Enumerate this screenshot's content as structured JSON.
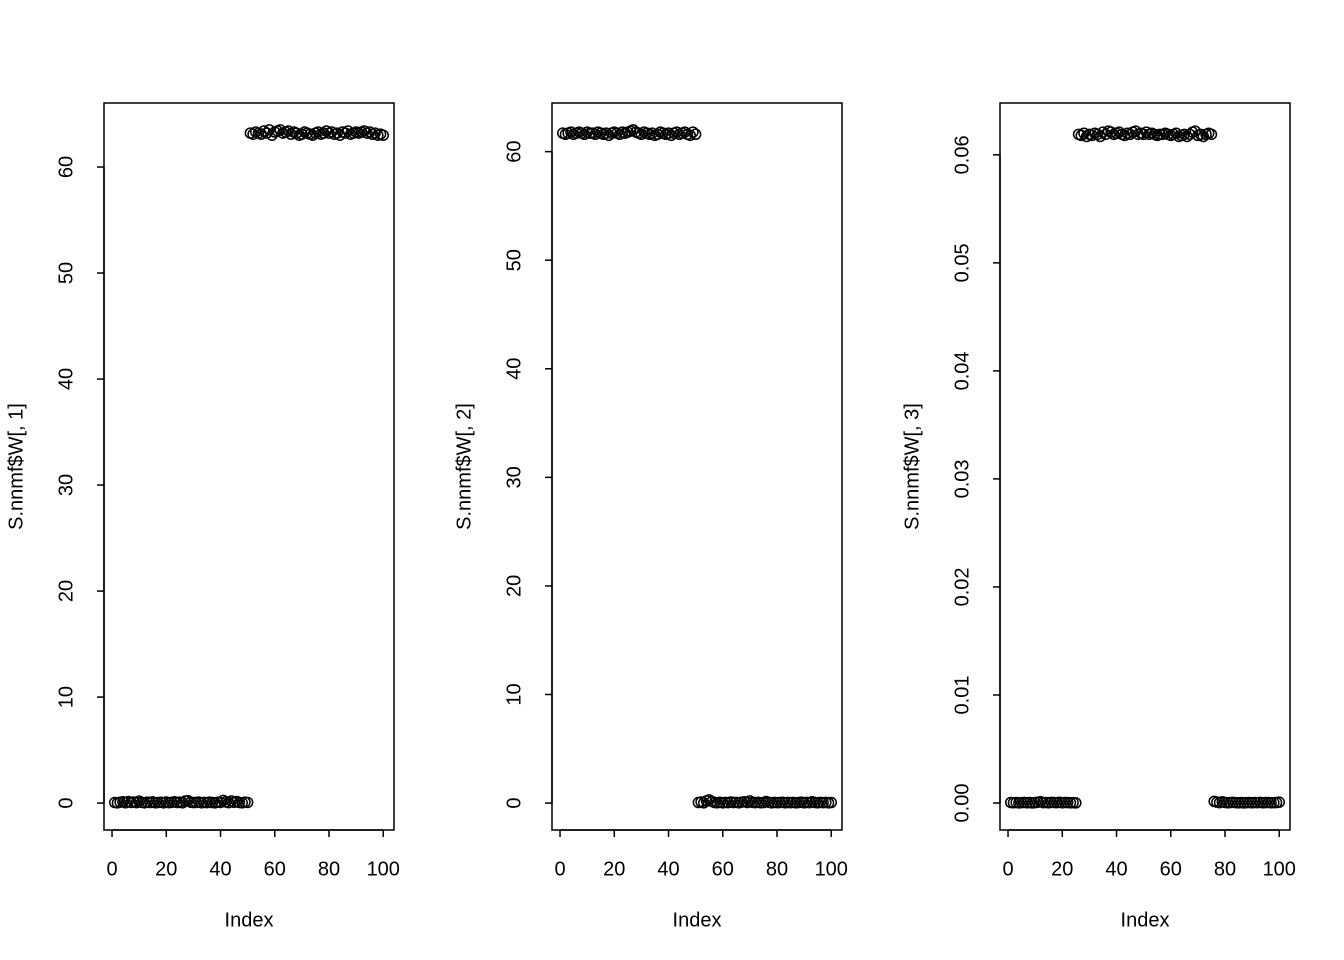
{
  "chart_data": [
    {
      "type": "scatter",
      "xlabel": "Index",
      "ylabel": "S.nnmf$W[, 1]",
      "x": [
        1,
        2,
        3,
        4,
        5,
        6,
        7,
        8,
        9,
        10,
        11,
        12,
        13,
        14,
        15,
        16,
        17,
        18,
        19,
        20,
        21,
        22,
        23,
        24,
        25,
        26,
        27,
        28,
        29,
        30,
        31,
        32,
        33,
        34,
        35,
        36,
        37,
        38,
        39,
        40,
        41,
        42,
        43,
        44,
        45,
        46,
        47,
        48,
        49,
        50,
        51,
        52,
        53,
        54,
        55,
        56,
        57,
        58,
        59,
        60,
        61,
        62,
        63,
        64,
        65,
        66,
        67,
        68,
        69,
        70,
        71,
        72,
        73,
        74,
        75,
        76,
        77,
        78,
        79,
        80,
        81,
        82,
        83,
        84,
        85,
        86,
        87,
        88,
        89,
        90,
        91,
        92,
        93,
        94,
        95,
        96,
        97,
        98,
        99,
        100
      ],
      "values": [
        0.05,
        0.02,
        0.08,
        0.12,
        0.03,
        0.15,
        0.06,
        0.1,
        0.04,
        0.18,
        0.07,
        0.02,
        0.09,
        0.05,
        0.11,
        0.03,
        0.06,
        0.08,
        0.02,
        0.1,
        0.04,
        0.07,
        0.12,
        0.05,
        0.09,
        0.03,
        0.2,
        0.22,
        0.08,
        0.05,
        0.06,
        0.1,
        0.03,
        0.07,
        0.04,
        0.09,
        0.05,
        0.02,
        0.08,
        0.06,
        0.25,
        0.11,
        0.04,
        0.2,
        0.07,
        0.15,
        0.05,
        0.03,
        0.09,
        0.06,
        63.2,
        63.1,
        63.3,
        63.2,
        63.1,
        63.4,
        63.2,
        63.5,
        63.0,
        63.3,
        63.4,
        63.5,
        63.2,
        63.3,
        63.4,
        63.1,
        63.3,
        63.2,
        63.0,
        63.1,
        63.3,
        63.2,
        63.1,
        63.0,
        63.2,
        63.3,
        63.1,
        63.2,
        63.4,
        63.2,
        63.3,
        63.1,
        63.2,
        63.0,
        63.3,
        63.2,
        63.4,
        63.1,
        63.2,
        63.3,
        63.2,
        63.3,
        63.4,
        63.2,
        63.3,
        63.1,
        63.2,
        63.0,
        63.1,
        63.0
      ],
      "xlim": [
        -2.96,
        103.96
      ],
      "ylim": [
        -2.54,
        66.04
      ],
      "xticks": [
        0,
        20,
        40,
        60,
        80,
        100
      ],
      "yticks": [
        0,
        10,
        20,
        30,
        40,
        50,
        60
      ]
    },
    {
      "type": "scatter",
      "xlabel": "Index",
      "ylabel": "S.nnmf$W[, 2]",
      "x": [
        1,
        2,
        3,
        4,
        5,
        6,
        7,
        8,
        9,
        10,
        11,
        12,
        13,
        14,
        15,
        16,
        17,
        18,
        19,
        20,
        21,
        22,
        23,
        24,
        25,
        26,
        27,
        28,
        29,
        30,
        31,
        32,
        33,
        34,
        35,
        36,
        37,
        38,
        39,
        40,
        41,
        42,
        43,
        44,
        45,
        46,
        47,
        48,
        49,
        50,
        51,
        52,
        53,
        54,
        55,
        56,
        57,
        58,
        59,
        60,
        61,
        62,
        63,
        64,
        65,
        66,
        67,
        68,
        69,
        70,
        71,
        72,
        73,
        74,
        75,
        76,
        77,
        78,
        79,
        80,
        81,
        82,
        83,
        84,
        85,
        86,
        87,
        88,
        89,
        90,
        91,
        92,
        93,
        94,
        95,
        96,
        97,
        98,
        99,
        100
      ],
      "values": [
        61.7,
        61.6,
        61.7,
        61.8,
        61.6,
        61.7,
        61.8,
        61.7,
        61.6,
        61.8,
        61.7,
        61.7,
        61.6,
        61.8,
        61.7,
        61.6,
        61.7,
        61.5,
        61.7,
        61.8,
        61.7,
        61.6,
        61.8,
        61.7,
        61.8,
        61.9,
        62.0,
        61.8,
        61.7,
        61.6,
        61.8,
        61.7,
        61.6,
        61.7,
        61.5,
        61.6,
        61.8,
        61.7,
        61.6,
        61.7,
        61.5,
        61.7,
        61.8,
        61.6,
        61.7,
        61.8,
        61.6,
        61.5,
        61.8,
        61.6,
        0.05,
        0.1,
        0.02,
        0.2,
        0.3,
        0.15,
        0.05,
        0.03,
        0.08,
        0.02,
        0.06,
        0.04,
        0.1,
        0.05,
        0.07,
        0.03,
        0.09,
        0.12,
        0.05,
        0.2,
        0.06,
        0.04,
        0.08,
        0.03,
        0.05,
        0.15,
        0.07,
        0.02,
        0.06,
        0.04,
        0.05,
        0.08,
        0.03,
        0.06,
        0.04,
        0.07,
        0.02,
        0.05,
        0.09,
        0.03,
        0.06,
        0.04,
        0.12,
        0.05,
        0.03,
        0.07,
        0.04,
        0.06,
        0.02,
        0.05
      ],
      "xlim": [
        -2.96,
        103.96
      ],
      "ylim": [
        -2.48,
        64.48
      ],
      "xticks": [
        0,
        20,
        40,
        60,
        80,
        100
      ],
      "yticks": [
        0,
        10,
        20,
        30,
        40,
        50,
        60
      ]
    },
    {
      "type": "scatter",
      "xlabel": "Index",
      "ylabel": "S.nnmf$W[, 3]",
      "x": [
        1,
        2,
        3,
        4,
        5,
        6,
        7,
        8,
        9,
        10,
        11,
        12,
        13,
        14,
        15,
        16,
        17,
        18,
        19,
        20,
        21,
        22,
        23,
        24,
        25,
        26,
        27,
        28,
        29,
        30,
        31,
        32,
        33,
        34,
        35,
        36,
        37,
        38,
        39,
        40,
        41,
        42,
        43,
        44,
        45,
        46,
        47,
        48,
        49,
        50,
        51,
        52,
        53,
        54,
        55,
        56,
        57,
        58,
        59,
        60,
        61,
        62,
        63,
        64,
        65,
        66,
        67,
        68,
        69,
        70,
        71,
        72,
        73,
        74,
        75,
        76,
        77,
        78,
        79,
        80,
        81,
        82,
        83,
        84,
        85,
        86,
        87,
        88,
        89,
        90,
        91,
        92,
        93,
        94,
        95,
        96,
        97,
        98,
        99,
        100
      ],
      "values": [
        5e-05,
        2e-05,
        4e-05,
        1e-05,
        3e-05,
        6e-05,
        2e-05,
        4e-05,
        1e-05,
        3e-05,
        8e-05,
        0.00012,
        3e-05,
        5e-05,
        2e-05,
        6e-05,
        4e-05,
        3e-05,
        7e-05,
        2e-05,
        5e-05,
        4e-05,
        2e-05,
        3e-05,
        1e-05,
        0.0619,
        0.0618,
        0.062,
        0.0617,
        0.0619,
        0.0618,
        0.062,
        0.0619,
        0.0617,
        0.0621,
        0.0619,
        0.0622,
        0.0621,
        0.0619,
        0.062,
        0.0621,
        0.0619,
        0.0618,
        0.062,
        0.0619,
        0.0621,
        0.0622,
        0.0619,
        0.062,
        0.0619,
        0.0621,
        0.0619,
        0.062,
        0.0619,
        0.0618,
        0.0619,
        0.0619,
        0.062,
        0.0619,
        0.0618,
        0.0619,
        0.062,
        0.0617,
        0.0618,
        0.0619,
        0.0617,
        0.0619,
        0.0621,
        0.0622,
        0.0618,
        0.0619,
        0.0617,
        0.0619,
        0.062,
        0.0619,
        0.00015,
        8e-05,
        3e-05,
        0.00012,
        5e-05,
        2e-05,
        4e-05,
        6e-05,
        3e-05,
        2e-05,
        4e-05,
        1e-05,
        3e-05,
        5e-05,
        2e-05,
        4e-05,
        3e-05,
        6e-05,
        2e-05,
        4e-05,
        5e-05,
        2e-05,
        3e-05,
        4e-05,
        8e-05
      ],
      "xlim": [
        -2.96,
        103.96
      ],
      "ylim": [
        -0.0025,
        0.0648
      ],
      "xticks": [
        0,
        20,
        40,
        60,
        80,
        100
      ],
      "yticks": [
        {
          "value": 0,
          "label": "0.00"
        },
        0.01,
        0.02,
        0.03,
        0.04,
        0.05,
        0.06
      ]
    }
  ]
}
